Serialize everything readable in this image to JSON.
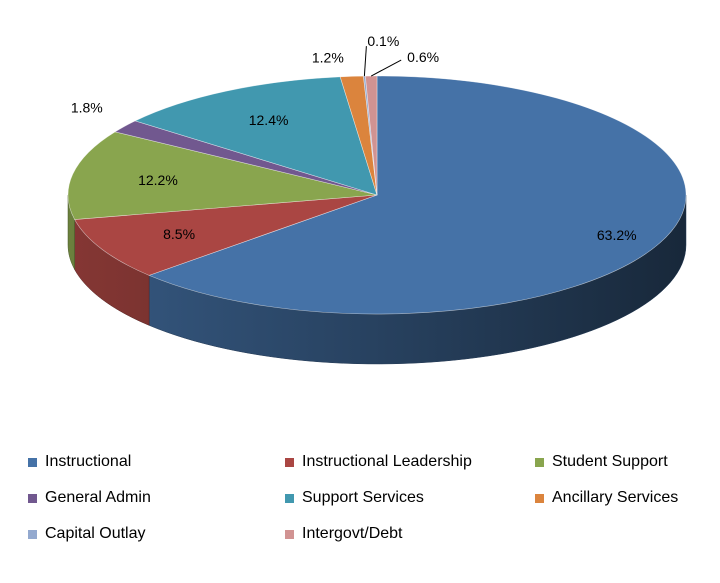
{
  "chart_data": {
    "type": "pie",
    "style": "3d",
    "title": "",
    "legend_position": "bottom",
    "categories": [
      "Instructional",
      "Instructional Leadership",
      "Student Support",
      "General Admin",
      "Support Services",
      "Ancillary Services",
      "Capital Outlay",
      "Intergovt/Debt"
    ],
    "values": [
      63.2,
      8.5,
      12.2,
      1.8,
      12.4,
      1.2,
      0.1,
      0.6
    ],
    "labels": [
      "63.2%",
      "8.5%",
      "12.2%",
      "1.8%",
      "12.4%",
      "1.2%",
      "0.1%",
      "0.6%"
    ],
    "colors": [
      "#4572A7",
      "#AA4643",
      "#89A54E",
      "#71588F",
      "#4198AF",
      "#DB843D",
      "#93A9CF",
      "#D19392"
    ]
  }
}
